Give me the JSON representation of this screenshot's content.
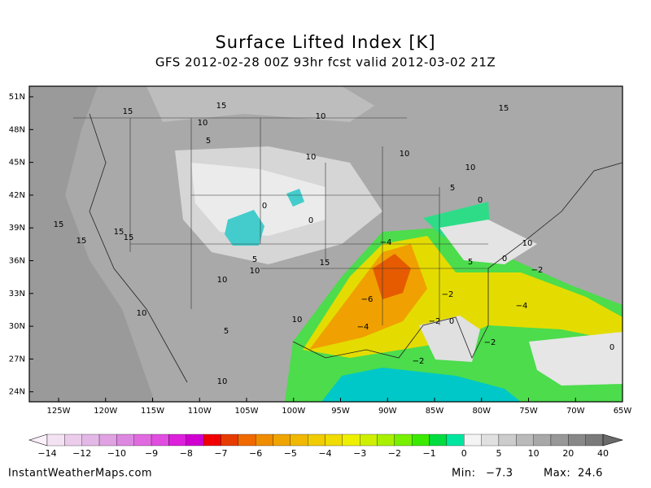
{
  "header": {
    "title": "Surface Lifted Index [K]",
    "subtitle": "GFS 2012-02-28 00Z 93hr fcst valid 2012-03-02 21Z"
  },
  "map": {
    "lat_labels": [
      "51N",
      "48N",
      "45N",
      "42N",
      "39N",
      "36N",
      "33N",
      "30N",
      "27N",
      "24N"
    ],
    "lon_labels": [
      "125W",
      "120W",
      "115W",
      "110W",
      "105W",
      "100W",
      "95W",
      "90W",
      "85W",
      "80W",
      "75W",
      "70W",
      "65W"
    ],
    "contour_labels": [
      "15",
      "15",
      "15",
      "10",
      "10",
      "5",
      "10",
      "10",
      "10",
      "5",
      "0",
      "0",
      "0",
      "15",
      "15",
      "15",
      "15",
      "−4",
      "10",
      "5",
      "10",
      "15",
      "5",
      "0",
      "−2",
      "10",
      "−2",
      "−6",
      "−4",
      "10",
      "10",
      "−4",
      "−2",
      "0",
      "5",
      "−2",
      "0",
      "−2",
      "10"
    ]
  },
  "colorbar": {
    "labels": [
      "−14",
      "−12",
      "−10",
      "−9",
      "−8",
      "−7",
      "−6",
      "−5",
      "−4",
      "−3",
      "−2",
      "−1",
      "0",
      "5",
      "10",
      "20",
      "40"
    ]
  },
  "footer": {
    "source": "InstantWeatherMaps.com",
    "min_label": "Min:",
    "min_value": "−7.3",
    "max_label": "Max:",
    "max_value": "24.6"
  }
}
